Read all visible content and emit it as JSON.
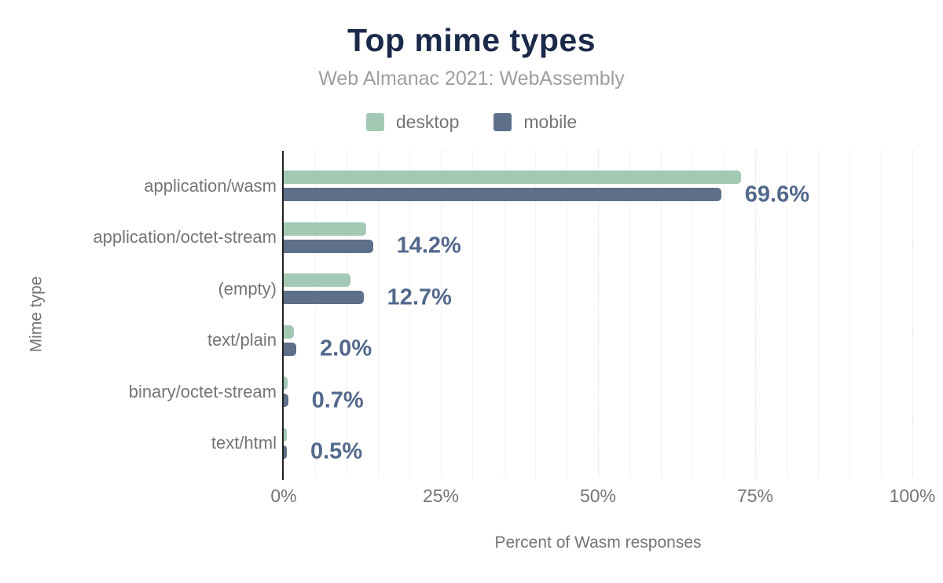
{
  "chart_data": {
    "type": "bar",
    "orientation": "horizontal",
    "title": "Top mime types",
    "subtitle": "Web Almanac 2021: WebAssembly",
    "xlabel": "Percent of Wasm responses",
    "ylabel": "Mime type",
    "categories": [
      "application/wasm",
      "application/octet-stream",
      "(empty)",
      "text/plain",
      "binary/octet-stream",
      "text/html"
    ],
    "series": [
      {
        "name": "desktop",
        "color": "#a3c8b4",
        "values": [
          72.8,
          13.1,
          10.6,
          1.6,
          0.6,
          0.5
        ]
      },
      {
        "name": "mobile",
        "color": "#5e7089",
        "values": [
          69.6,
          14.2,
          12.7,
          2.0,
          0.7,
          0.5
        ]
      }
    ],
    "bar_labels": [
      "69.6%",
      "14.2%",
      "12.7%",
      "2.0%",
      "0.7%",
      "0.5%"
    ],
    "bar_labels_series": "mobile",
    "x_ticks": [
      {
        "value": 0,
        "label": "0%"
      },
      {
        "value": 25,
        "label": "25%"
      },
      {
        "value": 50,
        "label": "50%"
      },
      {
        "value": 75,
        "label": "75%"
      },
      {
        "value": 100,
        "label": "100%"
      }
    ],
    "xlim": [
      0,
      100
    ],
    "grid": {
      "minor_step": 5,
      "major_step": 25,
      "direction": "vertical"
    },
    "legend_position": "top"
  },
  "colors": {
    "title": "#1c2a4a",
    "subtitle": "#9e9e9e",
    "axis_text": "#757575",
    "value_label": "#53688c",
    "axis_line": "#212121",
    "gridline_minor": "#f2f2f2",
    "gridline_major": "#dedede",
    "desktop": "#a3c8b4",
    "mobile": "#5e7089"
  }
}
